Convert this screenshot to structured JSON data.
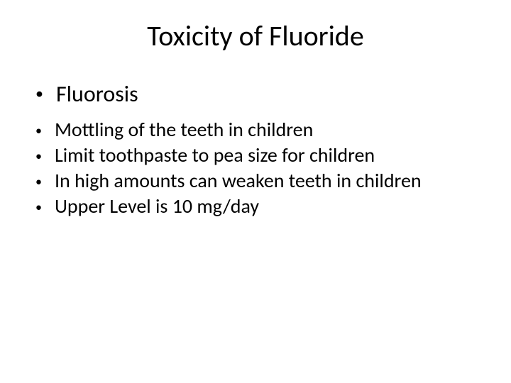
{
  "slide": {
    "title": "Toxicity of Fluoride",
    "title_fontsize": 40,
    "title_color": "#000000",
    "background_color": "#ffffff",
    "main_bullets": [
      {
        "text": "Fluorosis",
        "fontsize": 32
      }
    ],
    "sub_bullets": [
      {
        "text": "Mottling of the teeth in children",
        "fontsize": 28
      },
      {
        "text": "Limit toothpaste to pea size for children",
        "fontsize": 28
      },
      {
        "text": "In high amounts can weaken teeth in children",
        "fontsize": 28
      },
      {
        "text": "Upper Level is 10 mg/day",
        "fontsize": 28
      }
    ],
    "bullet_glyph": "•",
    "font_family": "Calibri",
    "text_color": "#000000"
  }
}
